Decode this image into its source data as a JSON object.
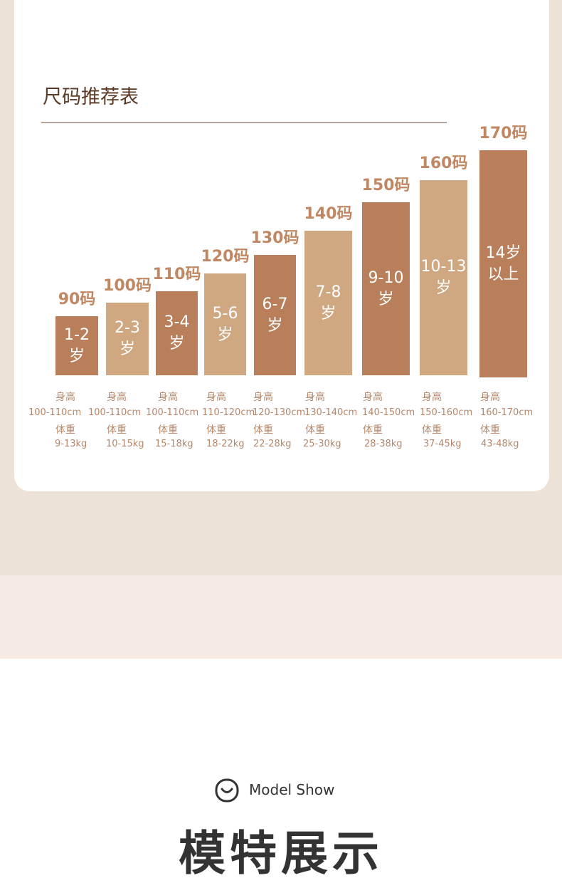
{
  "title": "尺码推荐表",
  "sizes": [
    {
      "size": "90码",
      "age": [
        "1-2",
        "岁"
      ],
      "height_label": "身高",
      "height": "100-110cm",
      "weight_label": "体重",
      "weight": "9-13kg"
    },
    {
      "size": "100码",
      "age": [
        "2-3",
        "岁"
      ],
      "height_label": "身高",
      "height": "100-110cm",
      "weight_label": "体重",
      "weight": "10-15kg"
    },
    {
      "size": "110码",
      "age": [
        "3-4",
        "岁"
      ],
      "height_label": "身高",
      "height": "100-110cm",
      "weight_label": "体重",
      "weight": "15-18kg"
    },
    {
      "size": "120码",
      "age": [
        "5-6",
        "岁"
      ],
      "height_label": "身高",
      "height": "110-120cm",
      "weight_label": "体重",
      "weight": "18-22kg"
    },
    {
      "size": "130码",
      "age": [
        "6-7",
        "岁"
      ],
      "height_label": "身高",
      "height": "120-130cm",
      "weight_label": "体重",
      "weight": "22-28kg"
    },
    {
      "size": "140码",
      "age": [
        "7-8",
        "岁"
      ],
      "height_label": "身高",
      "height": "130-140cm",
      "weight_label": "体重",
      "weight": "25-30kg"
    },
    {
      "size": "150码",
      "age": [
        "9-10",
        "岁"
      ],
      "height_label": "身高",
      "height": "140-150cm",
      "weight_label": "体重",
      "weight": "28-38kg"
    },
    {
      "size": "160码",
      "age": [
        "10-13",
        "岁"
      ],
      "height_label": "身高",
      "height": "150-160cm",
      "weight_label": "体重",
      "weight": "37-45kg"
    },
    {
      "size": "170码",
      "age": [
        "14岁",
        "以上"
      ],
      "height_label": "身高",
      "height": "160-170cm",
      "weight_label": "体重",
      "weight": "43-48kg"
    }
  ],
  "section": {
    "subtitle": "Model Show",
    "title": "模特展示"
  }
}
